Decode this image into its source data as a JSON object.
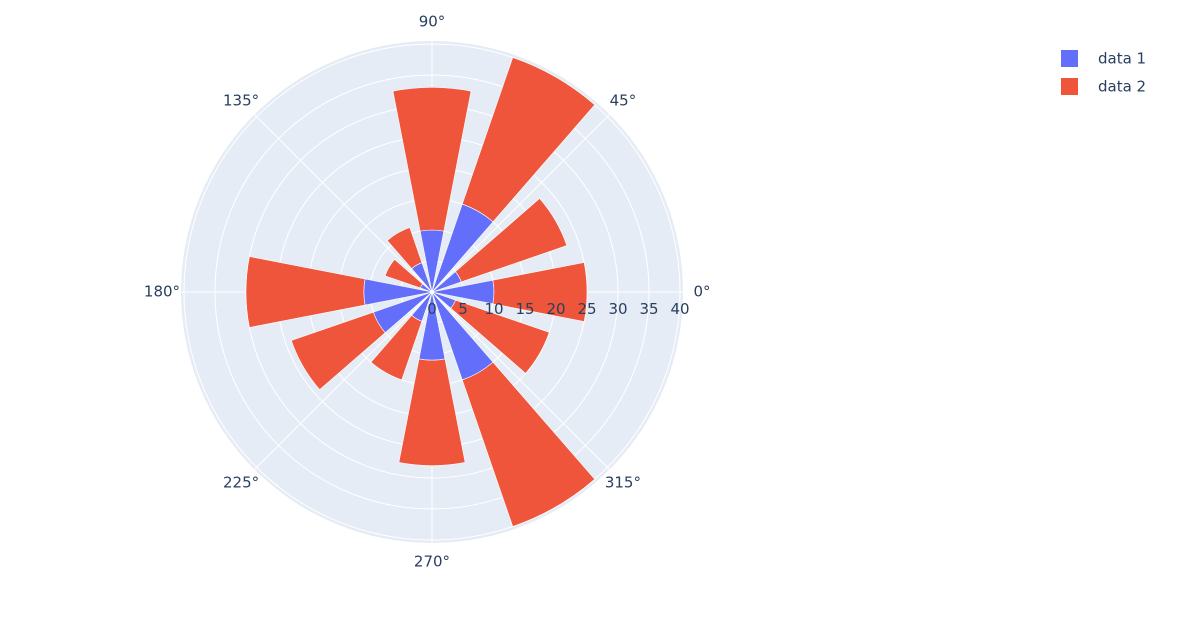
{
  "chart_data": {
    "type": "barpolar",
    "title": "",
    "angular_axis": {
      "direction": "counterclockwise",
      "tick_labels": [
        "0°",
        "45°",
        "90°",
        "135°",
        "180°",
        "225°",
        "270°",
        "315°"
      ],
      "tick_angles": [
        0,
        45,
        90,
        135,
        180,
        225,
        270,
        315
      ]
    },
    "radial_axis": {
      "range": [
        0,
        40
      ],
      "tick_values": [
        0,
        5,
        10,
        15,
        20,
        25,
        30,
        35,
        40
      ],
      "tick_labels": [
        "0",
        "5",
        "10",
        "15",
        "20",
        "25",
        "30",
        "35",
        "40"
      ]
    },
    "bar_width_deg": 22,
    "theta": [
      0,
      30,
      60,
      90,
      120,
      150,
      180,
      210,
      240,
      270,
      300,
      330
    ],
    "series": [
      {
        "name": "data 1",
        "color": "#636efa",
        "values": [
          10,
          5,
          15,
          10,
          5,
          2,
          11,
          10,
          5,
          11,
          15,
          4
        ]
      },
      {
        "name": "data 2",
        "color": "#ef553b",
        "values": [
          15,
          18,
          25,
          23,
          6,
          6,
          19,
          14,
          10,
          17,
          25,
          16
        ]
      }
    ],
    "background_color": "#e5ecf6",
    "grid_color": "#ffffff",
    "legend": {
      "placement": "top-right"
    }
  }
}
